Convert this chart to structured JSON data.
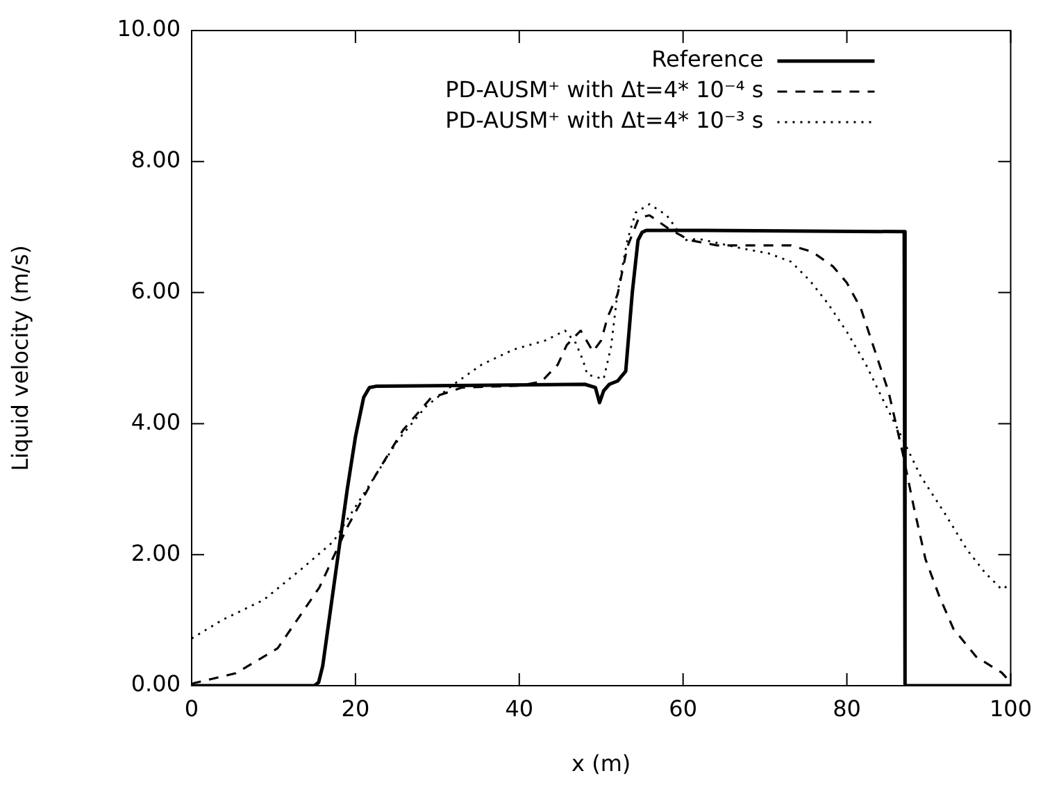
{
  "chart_data": {
    "type": "line",
    "xlabel": "x (m)",
    "ylabel": "Liquid velocity (m/s)",
    "xlim": [
      0,
      100
    ],
    "xticks": [
      0,
      20,
      40,
      60,
      80,
      100
    ],
    "ylim": [
      0,
      10
    ],
    "yticks": [
      {
        "value": 0,
        "label": "0.00"
      },
      {
        "value": 2,
        "label": "2.00"
      },
      {
        "value": 4,
        "label": "4.00"
      },
      {
        "value": 6,
        "label": "6.00"
      },
      {
        "value": 8,
        "label": "8.00"
      },
      {
        "value": 10,
        "label": "10.00"
      }
    ],
    "grid": false,
    "legend": "top right",
    "marker": "none",
    "series": [
      {
        "name": "Reference",
        "color": "#000000",
        "line_style": "solid",
        "x": [
          0,
          15,
          15.5,
          16,
          17,
          18,
          19,
          20,
          21,
          21.7,
          22.5,
          30,
          48,
          49.3,
          49.8,
          50.3,
          51,
          52,
          53,
          53.8,
          54.5,
          55,
          55.5,
          60,
          87,
          87.1,
          100
        ],
        "values": [
          0,
          0,
          0.05,
          0.3,
          1.2,
          2.1,
          3.0,
          3.8,
          4.4,
          4.55,
          4.57,
          4.58,
          4.6,
          4.55,
          4.32,
          4.5,
          4.6,
          4.65,
          4.8,
          6.0,
          6.8,
          6.92,
          6.95,
          6.95,
          6.93,
          0,
          0
        ]
      },
      {
        "name": "PD-AUSM⁺ with Δt=4* 10⁻⁴ s",
        "color": "#000000",
        "line_style": "dashed",
        "x": [
          0,
          0.3,
          5.4,
          10.5,
          15.6,
          19,
          22.4,
          25.8,
          29.2,
          33,
          40,
          42.7,
          44.7,
          45.8,
          47.5,
          49,
          50,
          50.8,
          52,
          53.2,
          54.6,
          55.9,
          58.3,
          60.8,
          64.2,
          73.2,
          75.8,
          78.3,
          80,
          81.7,
          83.4,
          85.1,
          86.8,
          88.2,
          89.6,
          91.3,
          93,
          95.8,
          98.9,
          100
        ],
        "values": [
          0.02,
          0.04,
          0.19,
          0.57,
          1.5,
          2.42,
          3.2,
          3.9,
          4.39,
          4.55,
          4.58,
          4.64,
          4.9,
          5.2,
          5.42,
          5.1,
          5.27,
          5.63,
          5.97,
          6.7,
          7.14,
          7.18,
          6.97,
          6.8,
          6.72,
          6.72,
          6.62,
          6.4,
          6.15,
          5.76,
          5.12,
          4.48,
          3.56,
          2.71,
          1.93,
          1.36,
          0.87,
          0.44,
          0.2,
          0.05
        ]
      },
      {
        "name": "PD-AUSM⁺ with Δt=4* 10⁻³ s",
        "color": "#000000",
        "line_style": "dotted",
        "x": [
          0,
          3.7,
          8.8,
          13.4,
          17.3,
          20.2,
          22.4,
          25.2,
          28.6,
          32,
          35.4,
          39.3,
          43.2,
          45.6,
          46.9,
          47.8,
          48.3,
          50.3,
          51.2,
          52,
          53.2,
          54.2,
          55.9,
          58,
          60.2,
          61.9,
          67,
          70.4,
          73.2,
          75.5,
          77.7,
          80,
          82.3,
          84.5,
          86.8,
          89,
          91.9,
          94.7,
          96.9,
          98.9,
          100
        ],
        "values": [
          0.72,
          1.0,
          1.31,
          1.78,
          2.2,
          2.77,
          3.2,
          3.75,
          4.26,
          4.6,
          4.9,
          5.13,
          5.27,
          5.42,
          5.23,
          4.96,
          4.75,
          4.68,
          5.17,
          6.0,
          6.8,
          7.22,
          7.35,
          7.18,
          6.8,
          6.82,
          6.68,
          6.6,
          6.47,
          6.18,
          5.83,
          5.4,
          4.91,
          4.34,
          3.77,
          3.2,
          2.64,
          2.07,
          1.72,
          1.47,
          1.55
        ]
      }
    ]
  }
}
